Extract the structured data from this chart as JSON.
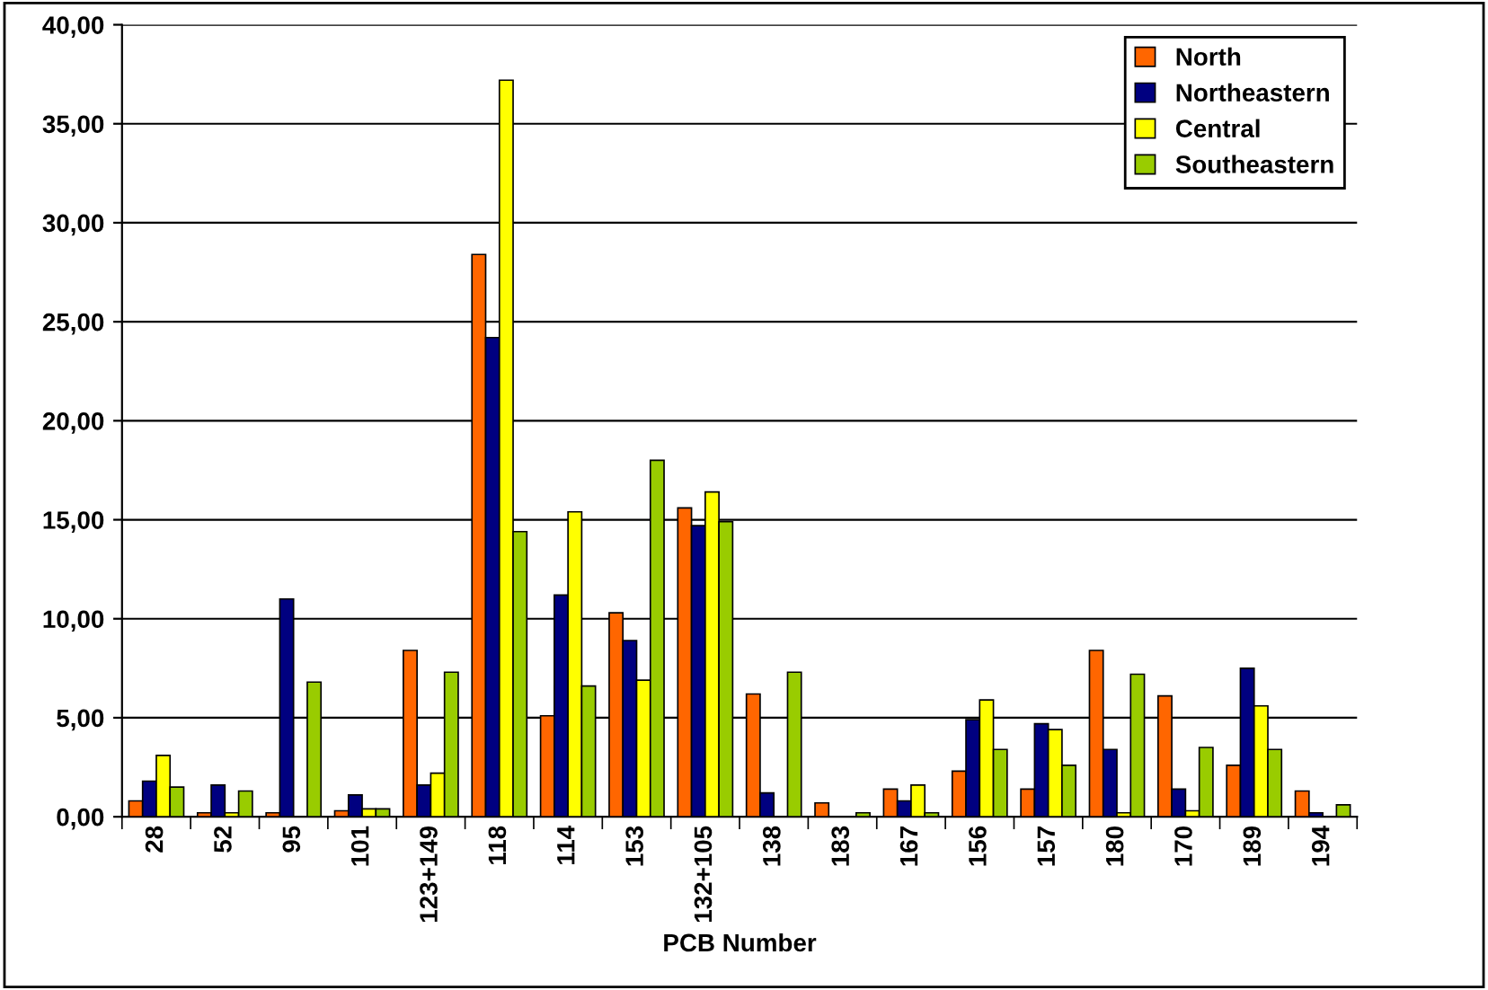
{
  "chart_data": {
    "type": "bar",
    "xlabel": "PCB Number",
    "categories": [
      "28",
      "52",
      "95",
      "101",
      "123+149",
      "118",
      "114",
      "153",
      "132+105",
      "138",
      "183",
      "167",
      "156",
      "157",
      "180",
      "170",
      "189",
      "194"
    ],
    "series": [
      {
        "name": "North",
        "color": "#ff6600",
        "values": [
          0.8,
          0.2,
          0.2,
          0.3,
          8.4,
          28.4,
          5.1,
          10.3,
          15.6,
          6.2,
          0.7,
          1.4,
          2.3,
          1.4,
          8.4,
          6.1,
          2.6,
          1.3
        ]
      },
      {
        "name": "Northeastern",
        "color": "#000080",
        "values": [
          1.8,
          1.6,
          11.0,
          1.1,
          1.6,
          24.2,
          11.2,
          8.9,
          14.7,
          1.2,
          null,
          0.8,
          4.9,
          4.7,
          3.4,
          1.4,
          7.5,
          0.2
        ]
      },
      {
        "name": "Central",
        "color": "#ffff00",
        "values": [
          3.1,
          0.2,
          null,
          0.4,
          2.2,
          37.2,
          15.4,
          6.9,
          16.4,
          null,
          null,
          1.6,
          5.9,
          4.4,
          0.2,
          0.3,
          5.6,
          null
        ]
      },
      {
        "name": "Southeastern",
        "color": "#99cc00",
        "values": [
          1.5,
          1.3,
          6.8,
          0.4,
          7.3,
          14.4,
          6.6,
          18.0,
          14.9,
          7.3,
          0.2,
          0.2,
          3.4,
          2.6,
          7.2,
          3.5,
          3.4,
          0.6
        ]
      }
    ],
    "ylim": [
      0,
      40
    ],
    "yticks": [
      {
        "value": 0,
        "label": "0,00"
      },
      {
        "value": 5,
        "label": "5,00"
      },
      {
        "value": 10,
        "label": "10,00"
      },
      {
        "value": 15,
        "label": "15,00"
      },
      {
        "value": 20,
        "label": "20,00"
      },
      {
        "value": 25,
        "label": "25,00"
      },
      {
        "value": 30,
        "label": "30,00"
      },
      {
        "value": 35,
        "label": "35,00"
      },
      {
        "value": 40,
        "label": "40,00"
      }
    ],
    "grid": "y",
    "legend": "top right"
  }
}
